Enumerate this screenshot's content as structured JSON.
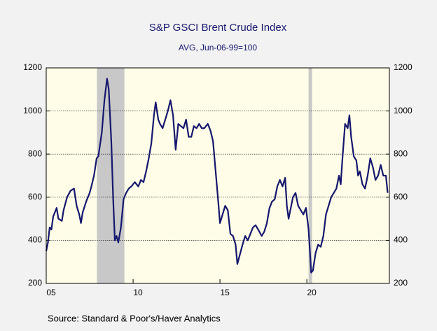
{
  "chart_data": {
    "type": "line",
    "title": "S&P GSCI Brent Crude Index",
    "subtitle": "AVG, Jun-06-99=100",
    "source": "Source:  Standard & Poor's/Haver Analytics",
    "xlim": [
      2005,
      2024.75
    ],
    "xticks": [
      {
        "value": 2005,
        "label": "05"
      },
      {
        "value": 2010,
        "label": "10"
      },
      {
        "value": 2015,
        "label": "15"
      },
      {
        "value": 2020,
        "label": "20"
      }
    ],
    "ylim": [
      200,
      1200
    ],
    "yticks": [
      200,
      400,
      600,
      800,
      1000,
      1200
    ],
    "y2lim": [
      200,
      1200
    ],
    "y2ticks": [
      200,
      400,
      600,
      800,
      1000,
      1200
    ],
    "grid": true,
    "shaded_periods": [
      [
        2007.92,
        2009.5
      ],
      [
        2020.1,
        2020.3
      ]
    ],
    "shade_color": "#c8c8c8",
    "background": "#fffde8",
    "series": [
      {
        "color": "#15176e",
        "x": [
          2005.0,
          2005.1,
          2005.2,
          2005.3,
          2005.4,
          2005.6,
          2005.7,
          2005.9,
          2006.0,
          2006.2,
          2006.4,
          2006.6,
          2006.75,
          2006.9,
          2007.0,
          2007.1,
          2007.3,
          2007.5,
          2007.6,
          2007.75,
          2007.9,
          2008.0,
          2008.2,
          2008.35,
          2008.5,
          2008.6,
          2008.75,
          2008.85,
          2008.95,
          2009.05,
          2009.15,
          2009.3,
          2009.45,
          2009.6,
          2009.75,
          2009.9,
          2010.1,
          2010.3,
          2010.45,
          2010.6,
          2010.75,
          2010.9,
          2011.05,
          2011.2,
          2011.3,
          2011.45,
          2011.55,
          2011.7,
          2011.85,
          2012.0,
          2012.15,
          2012.3,
          2012.45,
          2012.6,
          2012.75,
          2012.9,
          2013.05,
          2013.2,
          2013.35,
          2013.5,
          2013.65,
          2013.8,
          2013.95,
          2014.1,
          2014.3,
          2014.45,
          2014.6,
          2014.75,
          2014.9,
          2015.0,
          2015.15,
          2015.3,
          2015.45,
          2015.6,
          2015.75,
          2015.9,
          2016.0,
          2016.1,
          2016.3,
          2016.45,
          2016.6,
          2016.75,
          2016.9,
          2017.05,
          2017.2,
          2017.4,
          2017.55,
          2017.7,
          2017.85,
          2018.0,
          2018.15,
          2018.3,
          2018.45,
          2018.6,
          2018.75,
          2018.85,
          2018.95,
          2019.05,
          2019.2,
          2019.35,
          2019.5,
          2019.65,
          2019.8,
          2019.95,
          2020.1,
          2020.25,
          2020.35,
          2020.5,
          2020.65,
          2020.8,
          2020.95,
          2021.1,
          2021.25,
          2021.4,
          2021.55,
          2021.7,
          2021.85,
          2021.95,
          2022.05,
          2022.2,
          2022.35,
          2022.45,
          2022.55,
          2022.7,
          2022.85,
          2022.95,
          2023.05,
          2023.2,
          2023.35,
          2023.5,
          2023.65,
          2023.8,
          2023.95,
          2024.1,
          2024.25,
          2024.4,
          2024.55,
          2024.65
        ],
        "values": [
          350,
          390,
          460,
          450,
          510,
          550,
          500,
          490,
          540,
          600,
          630,
          640,
          560,
          520,
          480,
          530,
          580,
          620,
          650,
          700,
          780,
          790,
          900,
          1050,
          1150,
          1100,
          850,
          600,
          400,
          420,
          390,
          460,
          590,
          620,
          640,
          650,
          670,
          650,
          680,
          670,
          720,
          780,
          850,
          980,
          1040,
          960,
          940,
          920,
          960,
          1000,
          1050,
          980,
          820,
          940,
          930,
          920,
          960,
          880,
          880,
          930,
          920,
          940,
          920,
          920,
          940,
          910,
          860,
          720,
          580,
          480,
          520,
          560,
          540,
          430,
          420,
          380,
          290,
          320,
          380,
          420,
          400,
          430,
          460,
          470,
          450,
          420,
          440,
          480,
          550,
          580,
          590,
          650,
          680,
          650,
          690,
          560,
          500,
          540,
          600,
          620,
          560,
          540,
          520,
          550,
          450,
          250,
          260,
          340,
          380,
          370,
          420,
          520,
          560,
          600,
          620,
          640,
          700,
          660,
          780,
          940,
          920,
          980,
          880,
          790,
          770,
          700,
          720,
          660,
          640,
          700,
          780,
          740,
          680,
          700,
          750,
          700,
          700,
          620
        ]
      }
    ]
  }
}
